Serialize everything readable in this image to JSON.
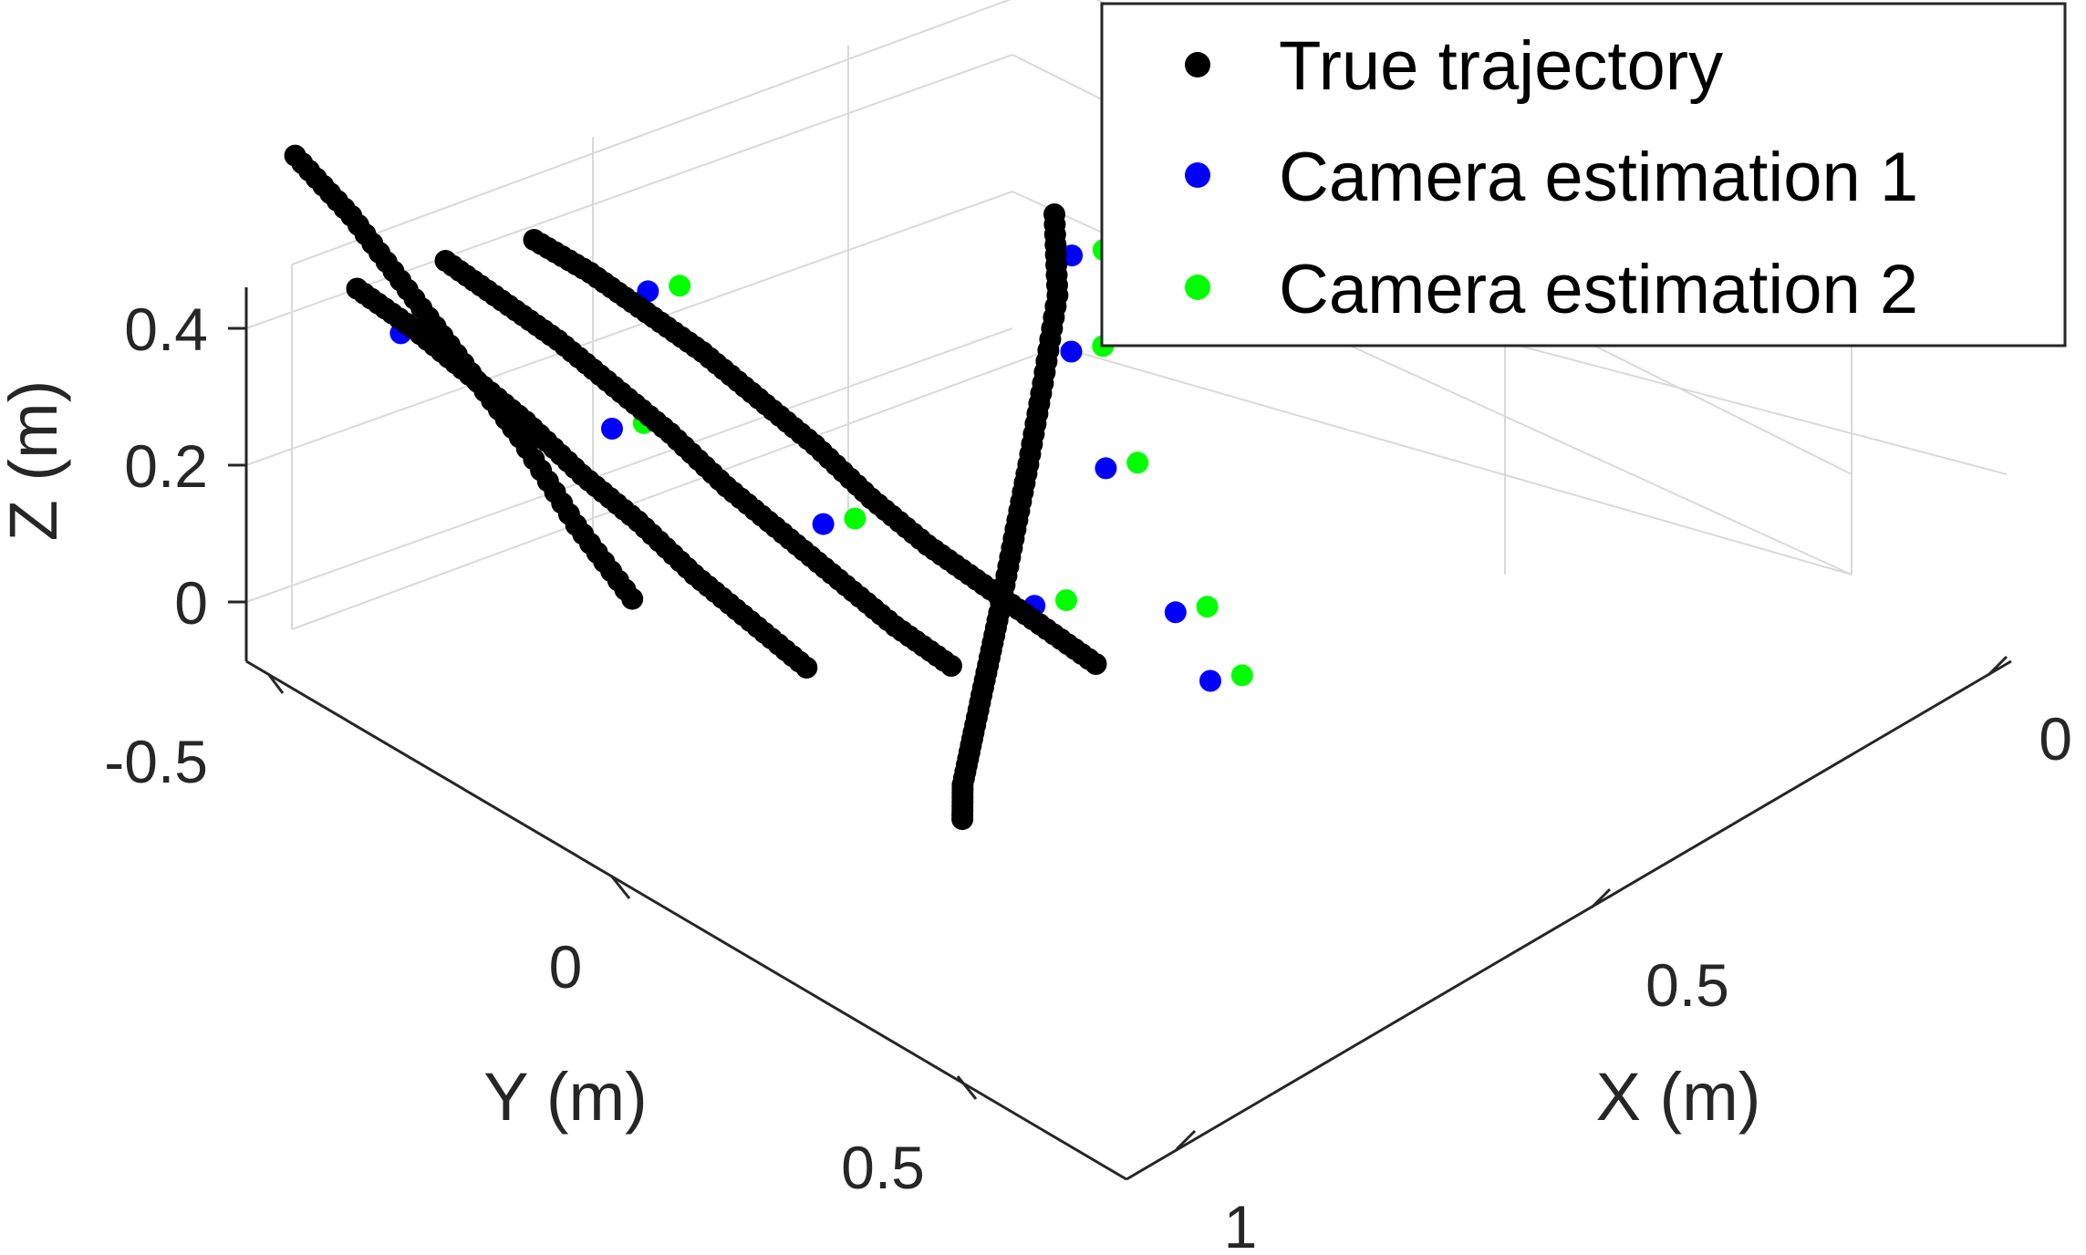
{
  "chart_data": {
    "type": "scatter",
    "dimensions": 3,
    "xlabel": "X (m)",
    "ylabel": "Y (m)",
    "zlabel": "Z (m)",
    "xlim": [
      0,
      1
    ],
    "ylim": [
      -0.5,
      0.5
    ],
    "zlim": [
      -0.1,
      0.5
    ],
    "xticks": [
      "0",
      "0.5",
      "1"
    ],
    "yticks": [
      "-0.5",
      "0",
      "0.5"
    ],
    "zticks": [
      "0",
      "0.2",
      "0.4"
    ],
    "grid": true,
    "legend_position": "top-right",
    "colors": {
      "true": "#000000",
      "cam1": "#0000ff",
      "cam2": "#00ff00"
    },
    "series": [
      {
        "name": "True trajectory",
        "color": "#000000",
        "segments": [
          {
            "x": [
              0.65,
              0.65,
              0.65,
              0.65,
              0.65,
              0.65,
              0.65,
              0.65,
              0.65,
              0.65,
              0.65
            ],
            "y": [
              -0.5,
              -0.42,
              -0.34,
              -0.26,
              -0.18,
              -0.1,
              -0.02,
              0.06,
              0.14,
              0.22,
              0.3
            ],
            "z": [
              0.14,
              0.14,
              0.13,
              0.12,
              0.1,
              0.08,
              0.05,
              0.03,
              0.02,
              0.01,
              0.0
            ]
          },
          {
            "x": [
              0.55,
              0.55,
              0.55,
              0.55,
              0.55,
              0.55,
              0.55,
              0.55,
              0.55,
              0.55
            ],
            "y": [
              -0.5,
              -0.42,
              -0.34,
              -0.26,
              -0.18,
              -0.1,
              -0.02,
              0.06,
              0.14,
              0.22
            ],
            "z": [
              0.16,
              0.15,
              0.14,
              0.12,
              0.1,
              0.07,
              0.05,
              0.03,
              0.01,
              0.0
            ]
          },
          {
            "x": [
              0.45,
              0.45,
              0.45,
              0.45,
              0.45,
              0.45,
              0.45,
              0.45,
              0.45
            ],
            "y": [
              -0.5,
              -0.42,
              -0.34,
              -0.26,
              -0.18,
              -0.1,
              -0.02,
              0.06,
              0.14
            ],
            "z": [
              0.17,
              0.16,
              0.14,
              0.12,
              0.09,
              0.07,
              0.04,
              0.02,
              0.0
            ]
          },
          {
            "x": [
              0.38,
              0.38,
              0.38,
              0.38,
              0.38,
              0.38,
              0.38
            ],
            "y": [
              -0.5,
              -0.42,
              -0.34,
              -0.26,
              -0.18,
              -0.1,
              -0.02
            ],
            "z": [
              0.4,
              0.36,
              0.3,
              0.24,
              0.18,
              0.1,
              0.04
            ]
          },
          {
            "x": [
              0.38,
              0.42,
              0.48,
              0.55,
              0.62,
              0.7,
              0.78,
              0.86,
              0.94,
              1.0
            ],
            "y": [
              0.45,
              0.4,
              0.34,
              0.27,
              0.2,
              0.12,
              0.04,
              -0.04,
              -0.12,
              -0.2
            ],
            "z": [
              0.0,
              0.0,
              0.01,
              0.02,
              0.03,
              0.05,
              0.07,
              0.1,
              0.14,
              0.18
            ]
          }
        ]
      },
      {
        "name": "Camera estimation 1",
        "color": "#0000ff",
        "x": [
          0.42,
          0.5,
          0.58,
          0.66,
          0.74,
          0.82,
          0.9,
          0.98,
          0.62,
          0.7
        ],
        "y": [
          -0.4,
          -0.2,
          0.0,
          0.2,
          0.3,
          0.1,
          -0.05,
          -0.15,
          -0.3,
          0.4
        ],
        "z": [
          0.18,
          0.12,
          0.06,
          0.02,
          0.03,
          0.08,
          0.12,
          0.16,
          0.2,
          0.01
        ]
      },
      {
        "name": "Camera estimation 2",
        "color": "#00ff00",
        "x": [
          0.44,
          0.52,
          0.6,
          0.68,
          0.76,
          0.84,
          0.92,
          1.0,
          0.64,
          0.72
        ],
        "y": [
          -0.38,
          -0.18,
          0.02,
          0.22,
          0.32,
          0.12,
          -0.03,
          -0.13,
          -0.28,
          0.42
        ],
        "z": [
          0.19,
          0.13,
          0.07,
          0.03,
          0.04,
          0.09,
          0.13,
          0.17,
          0.21,
          0.02
        ]
      }
    ]
  }
}
